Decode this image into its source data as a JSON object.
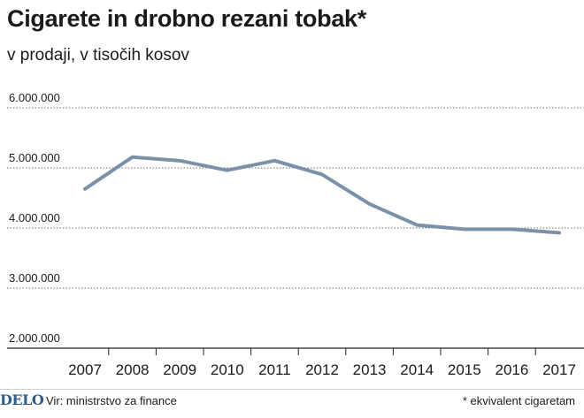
{
  "chart_data": {
    "type": "line",
    "title": "Cigarete in drobno rezani tobak*",
    "subtitle": "v prodaji, v tisočih kosov",
    "categories": [
      "2007",
      "2008",
      "2009",
      "2010",
      "2011",
      "2012",
      "2013",
      "2014",
      "2015",
      "2016",
      "2017"
    ],
    "series": [
      {
        "values": [
          4650000,
          5180000,
          5120000,
          4960000,
          5120000,
          4890000,
          4400000,
          4050000,
          3980000,
          3980000,
          3920000
        ]
      }
    ],
    "y_ticks": [
      "2.000.000",
      "3.000.000",
      "4.000.000",
      "5.000.000",
      "6.000.000"
    ],
    "y_tick_values": [
      2000000,
      3000000,
      4000000,
      5000000,
      6000000
    ],
    "ylim": [
      2000000,
      6000000
    ],
    "grid": true,
    "colors": {
      "line": "#7a91a8",
      "grid": "#6b6b6b",
      "axis": "#222222"
    }
  },
  "footer": {
    "logo": "DELO",
    "source": "Vir: ministrstvo za finance",
    "footnote": "* ekvivalent cigaretam"
  }
}
